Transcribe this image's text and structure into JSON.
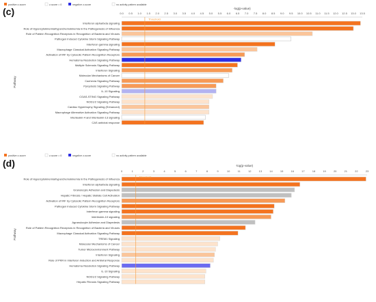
{
  "colors": {
    "orange_strong": "#f4731f",
    "orange_mid": "#f79a56",
    "orange_light": "#fbc59a",
    "orange_pale": "#fde3cc",
    "white_bar": "#ffffff",
    "gray": "#c0c0c0",
    "blue_strong": "#2d2de3",
    "blue_mid": "#6b6bf0",
    "blue_light": "#b3b3f1",
    "blue_pale": "#d8d8f3",
    "threshold": "#f39a3d"
  },
  "chart_data": [
    {
      "type": "bar",
      "orientation": "horizontal",
      "panel_label": "(c)",
      "legend": [
        "positive z-score",
        "z-score = 0",
        "negative z-score",
        "no activity pattern available"
      ],
      "xlabel": "-log(p-value)",
      "ylabel": "Pathway",
      "threshold_label": "Threshold",
      "threshold": 1.3,
      "xlim": [
        0,
        13.5
      ],
      "xticks": [
        "0.0",
        "0.5",
        "1.0",
        "1.5",
        "2.0",
        "2.5",
        "3.0",
        "3.5",
        "4.0",
        "4.5",
        "5.0",
        "5.5",
        "6.0",
        "6.5",
        "7.0",
        "7.5",
        "8.0",
        "8.5",
        "9.0",
        "9.5",
        "10.0",
        "10.5",
        "11.0",
        "11.5",
        "12.0",
        "12.5",
        "13.0",
        "13.5"
      ],
      "categories": [
        "Interferon alpha/beta signaling",
        "Role of Hypercytokinemia/hyperchemokinemia in the Pathogenesis of Influenza",
        "Role of Pattern Recognition Receptors in Recognition of Bacteria and Viruses",
        "Pathogen Induced Cytokine Storm Signaling Pathway",
        "Interferon gamma signaling",
        "Macrophage Classical Activation Signaling Pathway",
        "Activation of IRF by Cytosolic Pattern Recognition Receptors",
        "Hematoma Resolution Signaling Pathway",
        "Multiple Sclerosis Signaling Pathway",
        "Interferon Signaling",
        "Molecular Mechanisms of Cancer",
        "Cachexia Signaling Pathway",
        "Pyroptosis Signaling Pathway",
        "IL-10 Signaling",
        "CGAS-STING Signaling Pathway",
        "NOD1/2 Signaling Pathway",
        "Cardiac Hypertrophy Signaling (Enhanced)",
        "Macrophage Alternative Activation Signaling Pathway",
        "Interleukin-4 and Interleukin-13 signaling",
        "CAS antiviral response"
      ],
      "values": [
        13.4,
        13.0,
        10.7,
        9.5,
        8.6,
        7.6,
        6.9,
        6.7,
        6.5,
        6.2,
        6.0,
        5.7,
        5.3,
        5.3,
        5.1,
        4.9,
        4.9,
        4.9,
        4.7,
        4.6
      ],
      "bar_colors": [
        "orange_strong",
        "orange_strong",
        "orange_light",
        "white_bar",
        "orange_strong",
        "orange_light",
        "orange_mid",
        "blue_strong",
        "orange_strong",
        "orange_mid",
        "white_bar",
        "orange_mid",
        "orange_mid",
        "blue_light",
        "orange_pale",
        "orange_pale",
        "orange_light",
        "orange_pale",
        "white_bar",
        "orange_strong"
      ]
    },
    {
      "type": "bar",
      "orientation": "horizontal",
      "panel_label": "(d)",
      "legend": [
        "positive z-score",
        "z-score = 0",
        "negative z-score",
        "no activity pattern available"
      ],
      "xlabel": "-log(p-value)",
      "ylabel": "Pathway",
      "threshold_label": "Threshold",
      "threshold": 1.3,
      "xlim": [
        0,
        23
      ],
      "xticks": [
        "0",
        "1",
        "2",
        "3",
        "4",
        "5",
        "6",
        "7",
        "8",
        "9",
        "10",
        "11",
        "12",
        "13",
        "14",
        "15",
        "16",
        "17",
        "18",
        "19",
        "20",
        "21",
        "22",
        "23"
      ],
      "categories": [
        "Role of Hypercytokinemia/hyperchemokinemia in the Pathogenesis of Influenza",
        "Interferon alpha/beta signaling",
        "Granulocyte Adhesion and Diapedesis",
        "Hepatic Fibrosis / Hepatic Stellate Cell Activation",
        "Activation of IRF by Cytosolic Pattern Recognition Receptors",
        "Pathogen Induced Cytokine Storm Signaling Pathway",
        "Interferon gamma signaling",
        "Interleukin-10 signaling",
        "Agranulocyte Adhesion and Diapedesis",
        "Role of Pattern Recognition Receptors in Recognition of Bacteria and Viruses",
        "Macrophage Classical Activation Signaling Pathway",
        "TREM1 Signaling",
        "Molecular Mechanisms of Cancer",
        "Tumor Microenvironment Pathway",
        "Interferon Signaling",
        "Role of PKR in Interferon Induction and Antiviral Response",
        "Hematoma Resolution Signaling Pathway",
        "IL-10 Signaling",
        "NOD1/2 Signaling Pathway",
        "Hepatic Fibrosis Signaling Pathway"
      ],
      "values": [
        22.9,
        16.7,
        16.2,
        15.9,
        15.3,
        14.3,
        14.2,
        14.0,
        12.5,
        11.6,
        10.9,
        9.2,
        9.0,
        8.8,
        8.7,
        8.6,
        8.3,
        7.9,
        7.8,
        7.8
      ],
      "bar_colors": [
        "orange_strong",
        "orange_strong",
        "gray",
        "gray",
        "orange_mid",
        "orange_strong",
        "orange_strong",
        "orange_mid",
        "gray",
        "orange_strong",
        "orange_strong",
        "orange_pale",
        "orange_pale",
        "orange_pale",
        "orange_light",
        "orange_pale",
        "blue_mid",
        "orange_pale",
        "orange_pale",
        "orange_pale"
      ]
    }
  ]
}
